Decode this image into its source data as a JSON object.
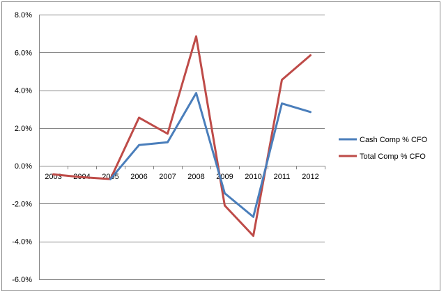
{
  "chart_data": {
    "type": "line",
    "title": "",
    "xlabel": "",
    "ylabel": "",
    "categories": [
      "2003",
      "2004",
      "2005",
      "2006",
      "2007",
      "2008",
      "2009",
      "2010",
      "2011",
      "2012"
    ],
    "y_ticks": [
      "8.0%",
      "6.0%",
      "4.0%",
      "2.0%",
      "0.0%",
      "-2.0%",
      "-4.0%",
      "-6.0%"
    ],
    "y_tick_values": [
      8,
      6,
      4,
      2,
      0,
      -2,
      -4,
      -6
    ],
    "ylim": [
      -6,
      8
    ],
    "grid": "horizontal",
    "legend_position": "right",
    "series": [
      {
        "name": "Cash Comp % CFO",
        "color": "#4a7ebb",
        "values": [
          null,
          null,
          -0.7,
          1.1,
          1.25,
          3.85,
          -1.45,
          -2.7,
          3.3,
          2.85
        ]
      },
      {
        "name": "Total Comp % CFO",
        "color": "#be4b48",
        "values": [
          -0.45,
          -0.6,
          -0.7,
          2.55,
          1.7,
          6.85,
          -2.1,
          -3.7,
          4.55,
          5.85
        ]
      }
    ]
  }
}
